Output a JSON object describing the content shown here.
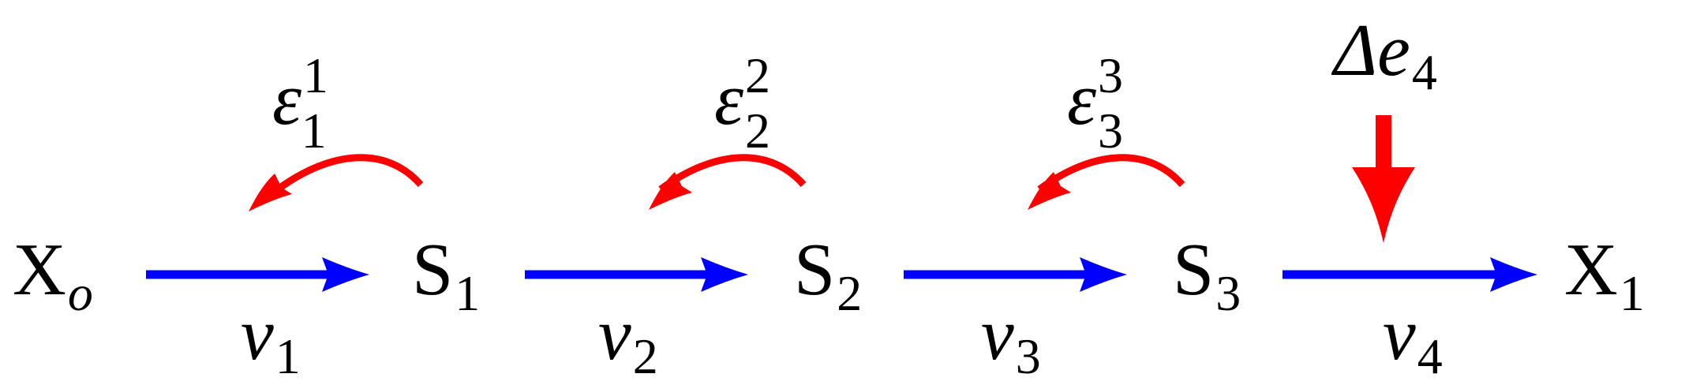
{
  "colors": {
    "flux_arrow": "#0000ff",
    "feedback_arrow": "#ff0000",
    "text": "#000000",
    "background": "#ffffff"
  },
  "nodes": [
    {
      "letter": "X",
      "sub": "o",
      "sub_italic": true
    },
    {
      "letter": "S",
      "sub": "1",
      "sub_italic": false
    },
    {
      "letter": "S",
      "sub": "2",
      "sub_italic": false
    },
    {
      "letter": "S",
      "sub": "3",
      "sub_italic": false
    },
    {
      "letter": "X",
      "sub": "1",
      "sub_italic": false
    }
  ],
  "fluxes": [
    {
      "symbol": "v",
      "sub": "1"
    },
    {
      "symbol": "v",
      "sub": "2"
    },
    {
      "symbol": "v",
      "sub": "3"
    },
    {
      "symbol": "v",
      "sub": "4"
    }
  ],
  "elasticities": [
    {
      "symbol": "ε",
      "sub": "1",
      "sup": "1"
    },
    {
      "symbol": "ε",
      "sub": "2",
      "sup": "2"
    },
    {
      "symbol": "ε",
      "sub": "3",
      "sup": "3"
    }
  ],
  "perturbation": {
    "symbol": "Δe",
    "sub": "4"
  }
}
